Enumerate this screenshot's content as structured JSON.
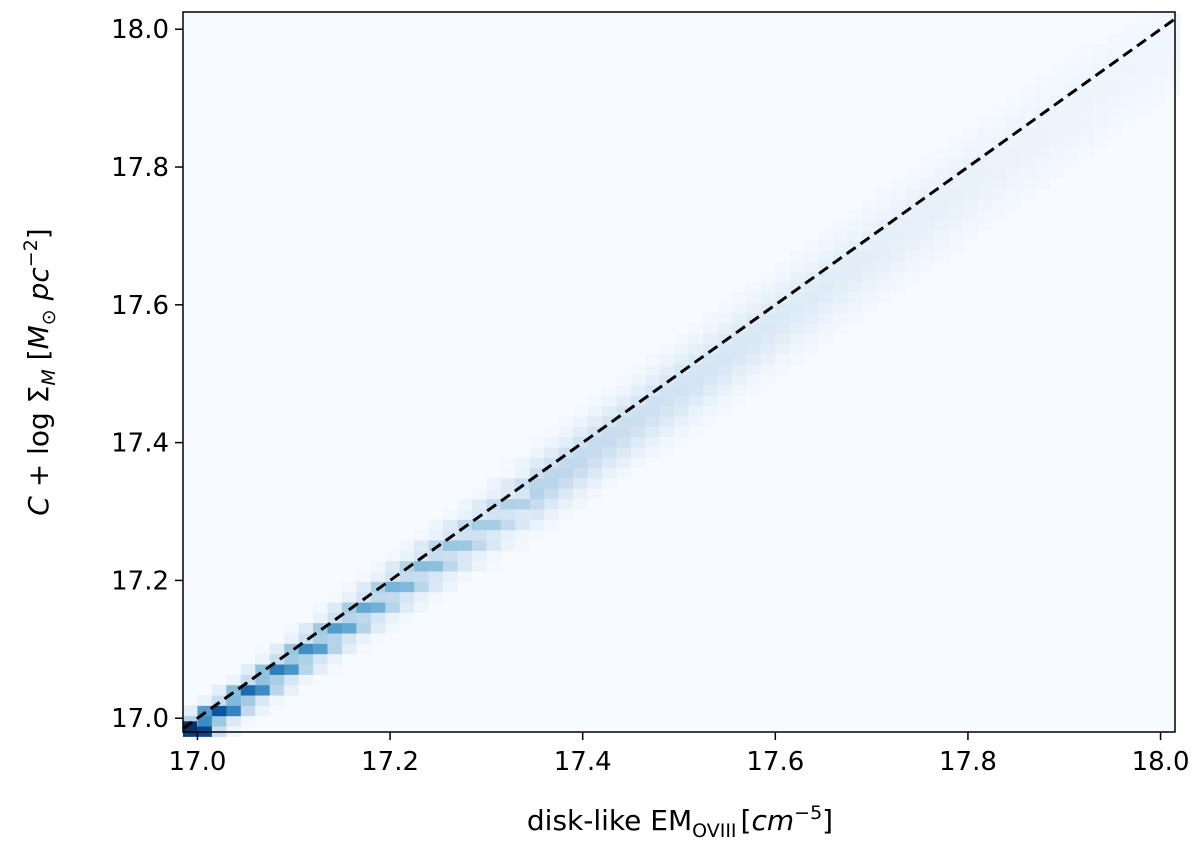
{
  "chart_data": {
    "type": "heatmap",
    "title": "",
    "xlabel": {
      "prefix": "disk-like EM",
      "subscript": "OVIII",
      "unit_open": "[",
      "unit_base": "cm",
      "unit_exp": "−5",
      "unit_close": "]"
    },
    "ylabel": {
      "c": "C",
      "plus": " + log Σ",
      "sub": "M",
      "unit_open": " [",
      "m": "M",
      "sun": "⊙",
      "pc": " pc",
      "exp": "−2",
      "unit_close": "]"
    },
    "xlim": [
      16.985,
      18.015
    ],
    "ylim": [
      16.98,
      18.025
    ],
    "x_ticks": [
      17.0,
      17.2,
      17.4,
      17.6,
      17.8,
      18.0
    ],
    "x_tick_labels": [
      "17.0",
      "17.2",
      "17.4",
      "17.6",
      "17.8",
      "18.0"
    ],
    "y_ticks": [
      17.0,
      17.2,
      17.4,
      17.6,
      17.8,
      18.0
    ],
    "y_tick_labels": [
      "17.0",
      "17.2",
      "17.4",
      "17.6",
      "17.8",
      "18.0"
    ],
    "colormap": "Blues",
    "background_color": "#f7fbff",
    "bin_size": 0.015,
    "grid": false,
    "reference_line": {
      "style": "dashed",
      "color": "#000000",
      "x": [
        16.985,
        18.015
      ],
      "y": [
        16.985,
        18.015
      ]
    },
    "density_band": {
      "description": "counts concentrated along x = y, band widening and fading toward higher values",
      "peak_point": [
        16.992,
        16.988
      ]
    }
  }
}
